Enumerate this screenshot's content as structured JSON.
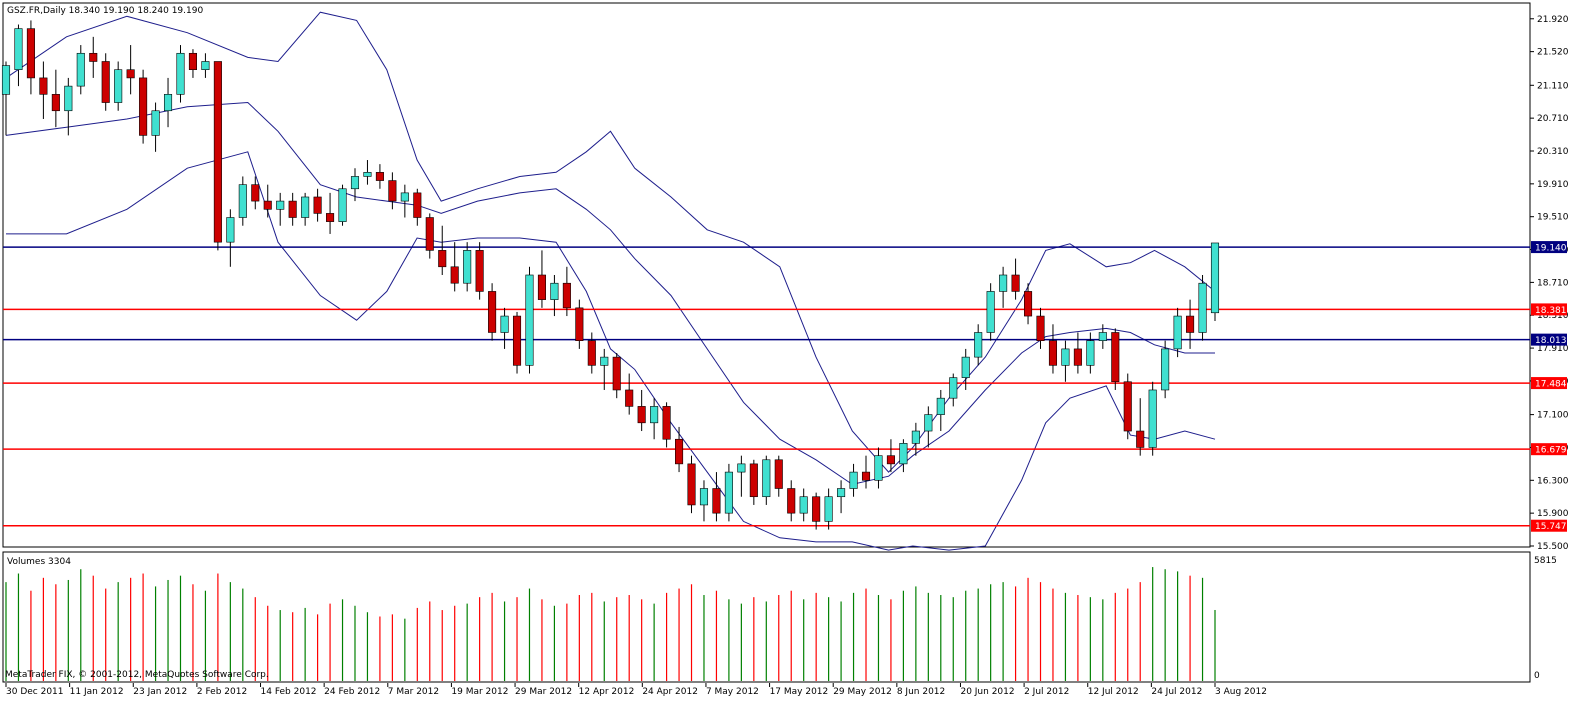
{
  "header": {
    "symbol_line": "GSZ.FR,Daily  18.340 19.190 18.240 19.190"
  },
  "volume_panel": {
    "label": "Volumes 3304",
    "axis_max_label": "5815",
    "axis_min_label": "0"
  },
  "footer": {
    "copyright": "MetaTrader FIX, © 2001-2012, MetaQuotes Software Corp."
  },
  "colors": {
    "background": "#ffffff",
    "bull_candle": "#40e0d0",
    "bear_candle": "#cc0000",
    "bollinger": "#1e1e8c",
    "resistance_line": "#ff0000",
    "support_line": "#000080",
    "volume_up": "#008000",
    "volume_down": "#ff0000"
  },
  "chart_data": {
    "type": "candlestick",
    "instrument": "GSZ.FR",
    "timeframe": "Daily",
    "last_bar": {
      "open": 18.34,
      "high": 19.19,
      "low": 18.24,
      "close": 19.19
    },
    "price_axis": {
      "range": [
        15.5,
        22.1
      ],
      "tick_labels": [
        "21.920",
        "21.520",
        "21.110",
        "20.710",
        "20.310",
        "19.910",
        "19.510",
        "19.110",
        "18.710",
        "18.310",
        "17.910",
        "17.510",
        "17.100",
        "16.700",
        "16.300",
        "15.900",
        "15.500"
      ]
    },
    "date_axis": {
      "tick_labels": [
        "30 Dec 2011",
        "11 Jan 2012",
        "23 Jan 2012",
        "2 Feb 2012",
        "14 Feb 2012",
        "24 Feb 2012",
        "7 Mar 2012",
        "19 Mar 2012",
        "29 Mar 2012",
        "12 Apr 2012",
        "24 Apr 2012",
        "7 May 2012",
        "17 May 2012",
        "29 May 2012",
        "8 Jun 2012",
        "20 Jun 2012",
        "2 Jul 2012",
        "12 Jul 2012",
        "24 Jul 2012",
        "3 Aug 2012"
      ]
    },
    "horizontal_levels": [
      {
        "price": 19.14,
        "label": "19.140",
        "style": "navy"
      },
      {
        "price": 18.381,
        "label": "18.381",
        "style": "red"
      },
      {
        "price": 18.013,
        "label": "18.013",
        "style": "navy"
      },
      {
        "price": 17.484,
        "label": "17.484",
        "style": "red"
      },
      {
        "price": 16.679,
        "label": "16.679",
        "style": "red"
      },
      {
        "price": 15.747,
        "label": "15.747",
        "style": "red"
      }
    ],
    "bollinger_bands": {
      "upper": [
        [
          0,
          21.2
        ],
        [
          10,
          21.7
        ],
        [
          20,
          21.95
        ],
        [
          30,
          21.75
        ],
        [
          40,
          21.45
        ],
        [
          45,
          21.4
        ],
        [
          52,
          22.0
        ],
        [
          58,
          21.9
        ],
        [
          63,
          21.3
        ],
        [
          68,
          20.2
        ],
        [
          72,
          19.7
        ],
        [
          78,
          19.85
        ],
        [
          85,
          20.0
        ],
        [
          91,
          20.05
        ],
        [
          96,
          20.3
        ],
        [
          100,
          20.55
        ],
        [
          104,
          20.1
        ],
        [
          110,
          19.75
        ],
        [
          116,
          19.35
        ],
        [
          122,
          19.2
        ],
        [
          128,
          18.9
        ],
        [
          134,
          17.8
        ],
        [
          140,
          16.9
        ],
        [
          146,
          16.4
        ],
        [
          150,
          16.7
        ],
        [
          156,
          17.3
        ],
        [
          162,
          17.8
        ],
        [
          168,
          18.5
        ],
        [
          172,
          19.1
        ],
        [
          176,
          19.18
        ],
        [
          182,
          18.9
        ],
        [
          186,
          18.95
        ],
        [
          190,
          19.1
        ],
        [
          195,
          18.9
        ],
        [
          200,
          18.6
        ]
      ],
      "middle": [
        [
          0,
          20.5
        ],
        [
          10,
          20.6
        ],
        [
          20,
          20.7
        ],
        [
          30,
          20.85
        ],
        [
          40,
          20.9
        ],
        [
          45,
          20.55
        ],
        [
          52,
          19.9
        ],
        [
          58,
          19.75
        ],
        [
          63,
          19.7
        ],
        [
          68,
          19.65
        ],
        [
          72,
          19.55
        ],
        [
          78,
          19.7
        ],
        [
          85,
          19.8
        ],
        [
          91,
          19.85
        ],
        [
          96,
          19.6
        ],
        [
          100,
          19.35
        ],
        [
          104,
          19.0
        ],
        [
          110,
          18.55
        ],
        [
          116,
          17.9
        ],
        [
          122,
          17.25
        ],
        [
          128,
          16.8
        ],
        [
          134,
          16.55
        ],
        [
          140,
          16.25
        ],
        [
          146,
          16.35
        ],
        [
          150,
          16.6
        ],
        [
          156,
          16.9
        ],
        [
          162,
          17.4
        ],
        [
          168,
          17.85
        ],
        [
          172,
          18.05
        ],
        [
          176,
          18.1
        ],
        [
          182,
          18.15
        ],
        [
          186,
          18.1
        ],
        [
          190,
          17.95
        ],
        [
          195,
          17.85
        ],
        [
          200,
          17.85
        ]
      ],
      "lower": [
        [
          0,
          19.3
        ],
        [
          10,
          19.3
        ],
        [
          20,
          19.6
        ],
        [
          30,
          20.1
        ],
        [
          40,
          20.3
        ],
        [
          45,
          19.2
        ],
        [
          52,
          18.55
        ],
        [
          58,
          18.25
        ],
        [
          63,
          18.6
        ],
        [
          68,
          19.25
        ],
        [
          72,
          19.2
        ],
        [
          78,
          19.25
        ],
        [
          85,
          19.25
        ],
        [
          91,
          19.2
        ],
        [
          96,
          18.6
        ],
        [
          100,
          17.9
        ],
        [
          104,
          17.65
        ],
        [
          110,
          17.0
        ],
        [
          116,
          16.4
        ],
        [
          122,
          15.8
        ],
        [
          128,
          15.6
        ],
        [
          134,
          15.55
        ],
        [
          140,
          15.55
        ],
        [
          146,
          15.45
        ],
        [
          150,
          15.5
        ],
        [
          156,
          15.45
        ],
        [
          162,
          15.5
        ],
        [
          168,
          16.3
        ],
        [
          172,
          17.0
        ],
        [
          176,
          17.3
        ],
        [
          182,
          17.45
        ],
        [
          186,
          16.85
        ],
        [
          190,
          16.8
        ],
        [
          195,
          16.9
        ],
        [
          200,
          16.8
        ]
      ]
    },
    "bars": [
      {
        "o": 21.0,
        "h": 21.4,
        "l": 20.5,
        "c": 21.35,
        "v": 4600
      },
      {
        "o": 21.3,
        "h": 21.85,
        "l": 21.1,
        "c": 21.8,
        "v": 5000
      },
      {
        "o": 21.8,
        "h": 21.9,
        "l": 21.0,
        "c": 21.2,
        "v": 4200
      },
      {
        "o": 21.2,
        "h": 21.4,
        "l": 20.7,
        "c": 21.0,
        "v": 4800
      },
      {
        "o": 21.0,
        "h": 21.3,
        "l": 20.6,
        "c": 20.8,
        "v": 4500
      },
      {
        "o": 20.8,
        "h": 21.2,
        "l": 20.5,
        "c": 21.1,
        "v": 4700
      },
      {
        "o": 21.1,
        "h": 21.6,
        "l": 21.0,
        "c": 21.5,
        "v": 5200
      },
      {
        "o": 21.5,
        "h": 21.7,
        "l": 21.2,
        "c": 21.4,
        "v": 4900
      },
      {
        "o": 21.4,
        "h": 21.5,
        "l": 20.8,
        "c": 20.9,
        "v": 4300
      },
      {
        "o": 20.9,
        "h": 21.4,
        "l": 20.8,
        "c": 21.3,
        "v": 4600
      },
      {
        "o": 21.3,
        "h": 21.6,
        "l": 21.0,
        "c": 21.2,
        "v": 4800
      },
      {
        "o": 21.2,
        "h": 21.3,
        "l": 20.4,
        "c": 20.5,
        "v": 5000
      },
      {
        "o": 20.5,
        "h": 20.9,
        "l": 20.3,
        "c": 20.8,
        "v": 4400
      },
      {
        "o": 20.8,
        "h": 21.2,
        "l": 20.6,
        "c": 21.0,
        "v": 4700
      },
      {
        "o": 21.0,
        "h": 21.6,
        "l": 20.9,
        "c": 21.5,
        "v": 4900
      },
      {
        "o": 21.5,
        "h": 21.55,
        "l": 21.2,
        "c": 21.3,
        "v": 4500
      },
      {
        "o": 21.3,
        "h": 21.5,
        "l": 21.2,
        "c": 21.4,
        "v": 4200
      },
      {
        "o": 21.4,
        "h": 20.5,
        "l": 19.1,
        "c": 19.2,
        "v": 5000
      },
      {
        "o": 19.2,
        "h": 19.6,
        "l": 18.9,
        "c": 19.5,
        "v": 4600
      },
      {
        "o": 19.5,
        "h": 20.0,
        "l": 19.4,
        "c": 19.9,
        "v": 4300
      },
      {
        "o": 19.9,
        "h": 20.0,
        "l": 19.6,
        "c": 19.7,
        "v": 3900
      },
      {
        "o": 19.7,
        "h": 19.9,
        "l": 19.5,
        "c": 19.6,
        "v": 3500
      },
      {
        "o": 19.6,
        "h": 19.8,
        "l": 19.4,
        "c": 19.7,
        "v": 3300
      },
      {
        "o": 19.7,
        "h": 19.8,
        "l": 19.4,
        "c": 19.5,
        "v": 3200
      },
      {
        "o": 19.5,
        "h": 19.8,
        "l": 19.4,
        "c": 19.75,
        "v": 3400
      },
      {
        "o": 19.75,
        "h": 19.85,
        "l": 19.45,
        "c": 19.55,
        "v": 3100
      },
      {
        "o": 19.55,
        "h": 19.8,
        "l": 19.3,
        "c": 19.45,
        "v": 3600
      },
      {
        "o": 19.45,
        "h": 19.9,
        "l": 19.4,
        "c": 19.85,
        "v": 3800
      },
      {
        "o": 19.85,
        "h": 20.1,
        "l": 19.7,
        "c": 20.0,
        "v": 3500
      },
      {
        "o": 20.0,
        "h": 20.2,
        "l": 19.9,
        "c": 20.05,
        "v": 3200
      },
      {
        "o": 20.05,
        "h": 20.15,
        "l": 19.85,
        "c": 19.95,
        "v": 3000
      },
      {
        "o": 19.95,
        "h": 20.05,
        "l": 19.6,
        "c": 19.7,
        "v": 3100
      },
      {
        "o": 19.7,
        "h": 19.9,
        "l": 19.5,
        "c": 19.8,
        "v": 2900
      },
      {
        "o": 19.8,
        "h": 19.85,
        "l": 19.4,
        "c": 19.5,
        "v": 3400
      },
      {
        "o": 19.5,
        "h": 19.55,
        "l": 19.0,
        "c": 19.1,
        "v": 3700
      },
      {
        "o": 19.1,
        "h": 19.4,
        "l": 18.8,
        "c": 18.9,
        "v": 3300
      },
      {
        "o": 18.9,
        "h": 19.2,
        "l": 18.6,
        "c": 18.7,
        "v": 3500
      },
      {
        "o": 18.7,
        "h": 19.2,
        "l": 18.6,
        "c": 19.1,
        "v": 3600
      },
      {
        "o": 19.1,
        "h": 19.2,
        "l": 18.5,
        "c": 18.6,
        "v": 3900
      },
      {
        "o": 18.6,
        "h": 18.7,
        "l": 18.0,
        "c": 18.1,
        "v": 4100
      },
      {
        "o": 18.1,
        "h": 18.4,
        "l": 17.9,
        "c": 18.3,
        "v": 3700
      },
      {
        "o": 18.3,
        "h": 18.35,
        "l": 17.6,
        "c": 17.7,
        "v": 3900
      },
      {
        "o": 17.7,
        "h": 18.9,
        "l": 17.6,
        "c": 18.8,
        "v": 4300
      },
      {
        "o": 18.8,
        "h": 19.1,
        "l": 18.4,
        "c": 18.5,
        "v": 3800
      },
      {
        "o": 18.5,
        "h": 18.8,
        "l": 18.3,
        "c": 18.7,
        "v": 3500
      },
      {
        "o": 18.7,
        "h": 18.9,
        "l": 18.3,
        "c": 18.4,
        "v": 3600
      },
      {
        "o": 18.4,
        "h": 18.5,
        "l": 17.9,
        "c": 18.0,
        "v": 4000
      },
      {
        "o": 18.0,
        "h": 18.1,
        "l": 17.6,
        "c": 17.7,
        "v": 4100
      },
      {
        "o": 17.7,
        "h": 17.9,
        "l": 17.4,
        "c": 17.8,
        "v": 3700
      },
      {
        "o": 17.8,
        "h": 17.85,
        "l": 17.3,
        "c": 17.4,
        "v": 3900
      },
      {
        "o": 17.4,
        "h": 17.6,
        "l": 17.1,
        "c": 17.2,
        "v": 4000
      },
      {
        "o": 17.2,
        "h": 17.4,
        "l": 16.9,
        "c": 17.0,
        "v": 3800
      },
      {
        "o": 17.0,
        "h": 17.3,
        "l": 16.8,
        "c": 17.2,
        "v": 3600
      },
      {
        "o": 17.2,
        "h": 17.25,
        "l": 16.7,
        "c": 16.8,
        "v": 4100
      },
      {
        "o": 16.8,
        "h": 16.95,
        "l": 16.4,
        "c": 16.5,
        "v": 4300
      },
      {
        "o": 16.5,
        "h": 16.6,
        "l": 15.9,
        "c": 16.0,
        "v": 4500
      },
      {
        "o": 16.0,
        "h": 16.3,
        "l": 15.8,
        "c": 16.2,
        "v": 4000
      },
      {
        "o": 16.2,
        "h": 16.4,
        "l": 15.8,
        "c": 15.9,
        "v": 4200
      },
      {
        "o": 15.9,
        "h": 16.5,
        "l": 15.8,
        "c": 16.4,
        "v": 3800
      },
      {
        "o": 16.4,
        "h": 16.6,
        "l": 16.1,
        "c": 16.5,
        "v": 3600
      },
      {
        "o": 16.5,
        "h": 16.55,
        "l": 16.0,
        "c": 16.1,
        "v": 3900
      },
      {
        "o": 16.1,
        "h": 16.6,
        "l": 16.0,
        "c": 16.55,
        "v": 3700
      },
      {
        "o": 16.55,
        "h": 16.6,
        "l": 16.1,
        "c": 16.2,
        "v": 4000
      },
      {
        "o": 16.2,
        "h": 16.3,
        "l": 15.8,
        "c": 15.9,
        "v": 4200
      },
      {
        "o": 15.9,
        "h": 16.2,
        "l": 15.8,
        "c": 16.1,
        "v": 3800
      },
      {
        "o": 16.1,
        "h": 16.15,
        "l": 15.7,
        "c": 15.8,
        "v": 4100
      },
      {
        "o": 15.8,
        "h": 16.2,
        "l": 15.7,
        "c": 16.1,
        "v": 3900
      },
      {
        "o": 16.1,
        "h": 16.3,
        "l": 15.9,
        "c": 16.2,
        "v": 3700
      },
      {
        "o": 16.2,
        "h": 16.5,
        "l": 16.1,
        "c": 16.4,
        "v": 4100
      },
      {
        "o": 16.4,
        "h": 16.6,
        "l": 16.2,
        "c": 16.3,
        "v": 4300
      },
      {
        "o": 16.3,
        "h": 16.7,
        "l": 16.2,
        "c": 16.6,
        "v": 4000
      },
      {
        "o": 16.6,
        "h": 16.8,
        "l": 16.4,
        "c": 16.5,
        "v": 3800
      },
      {
        "o": 16.5,
        "h": 16.8,
        "l": 16.4,
        "c": 16.75,
        "v": 4200
      },
      {
        "o": 16.75,
        "h": 17.0,
        "l": 16.6,
        "c": 16.9,
        "v": 4400
      },
      {
        "o": 16.9,
        "h": 17.2,
        "l": 16.7,
        "c": 17.1,
        "v": 4100
      },
      {
        "o": 17.1,
        "h": 17.4,
        "l": 16.9,
        "c": 17.3,
        "v": 4000
      },
      {
        "o": 17.3,
        "h": 17.6,
        "l": 17.2,
        "c": 17.55,
        "v": 3900
      },
      {
        "o": 17.55,
        "h": 17.9,
        "l": 17.4,
        "c": 17.8,
        "v": 4200
      },
      {
        "o": 17.8,
        "h": 18.2,
        "l": 17.7,
        "c": 18.1,
        "v": 4300
      },
      {
        "o": 18.1,
        "h": 18.7,
        "l": 18.0,
        "c": 18.6,
        "v": 4500
      },
      {
        "o": 18.6,
        "h": 18.9,
        "l": 18.4,
        "c": 18.8,
        "v": 4600
      },
      {
        "o": 18.8,
        "h": 19.0,
        "l": 18.5,
        "c": 18.6,
        "v": 4400
      },
      {
        "o": 18.6,
        "h": 18.7,
        "l": 18.2,
        "c": 18.3,
        "v": 4800
      },
      {
        "o": 18.3,
        "h": 18.4,
        "l": 17.9,
        "c": 18.0,
        "v": 4600
      },
      {
        "o": 18.0,
        "h": 18.2,
        "l": 17.6,
        "c": 17.7,
        "v": 4300
      },
      {
        "o": 17.7,
        "h": 18.0,
        "l": 17.5,
        "c": 17.9,
        "v": 4100
      },
      {
        "o": 17.9,
        "h": 18.1,
        "l": 17.6,
        "c": 17.7,
        "v": 4000
      },
      {
        "o": 17.7,
        "h": 18.1,
        "l": 17.6,
        "c": 18.0,
        "v": 3900
      },
      {
        "o": 18.0,
        "h": 18.2,
        "l": 17.9,
        "c": 18.1,
        "v": 3800
      },
      {
        "o": 18.1,
        "h": 18.15,
        "l": 17.4,
        "c": 17.5,
        "v": 4100
      },
      {
        "o": 17.5,
        "h": 17.6,
        "l": 16.8,
        "c": 16.9,
        "v": 4300
      },
      {
        "o": 16.9,
        "h": 17.3,
        "l": 16.6,
        "c": 16.7,
        "v": 4600
      },
      {
        "o": 16.7,
        "h": 17.5,
        "l": 16.6,
        "c": 17.4,
        "v": 5300
      },
      {
        "o": 17.4,
        "h": 18.0,
        "l": 17.3,
        "c": 17.9,
        "v": 5200
      },
      {
        "o": 17.9,
        "h": 18.4,
        "l": 17.8,
        "c": 18.3,
        "v": 5100
      },
      {
        "o": 18.3,
        "h": 18.5,
        "l": 17.9,
        "c": 18.1,
        "v": 4900
      },
      {
        "o": 18.1,
        "h": 18.8,
        "l": 18.0,
        "c": 18.7,
        "v": 4800
      },
      {
        "o": 18.34,
        "h": 19.19,
        "l": 18.24,
        "c": 19.19,
        "v": 3304
      }
    ]
  }
}
